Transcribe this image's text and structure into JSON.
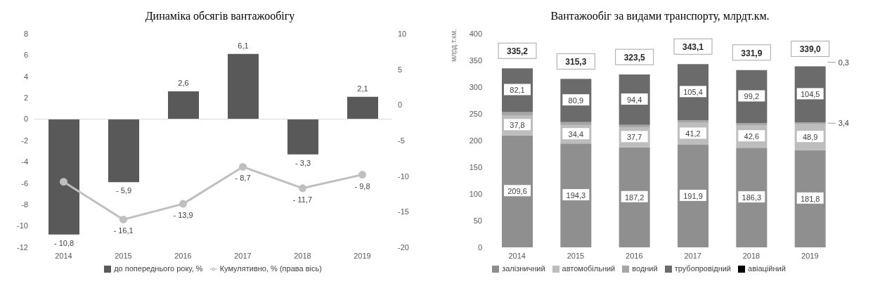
{
  "chart_data": [
    {
      "type": "bar",
      "title": "Динаміка обсягів вантажообігу",
      "categories": [
        "2014",
        "2015",
        "2016",
        "2017",
        "2018",
        "2019"
      ],
      "series": [
        {
          "name": "до попереднього року, %",
          "type": "bar",
          "color": "#595959",
          "values": [
            -10.8,
            -5.9,
            2.6,
            6.1,
            -3.3,
            2.1
          ],
          "value_labels": [
            "- 10,8",
            "- 5,9",
            "2,6",
            "6,1",
            "- 3,3",
            "2,1"
          ]
        },
        {
          "name": "Кумулятивно, % (права вісь)",
          "type": "line",
          "axis": "y2",
          "color": "#bfbfbf",
          "values": [
            -10.8,
            -16.1,
            -13.9,
            -8.7,
            -11.7,
            -9.8
          ],
          "value_labels": [
            null,
            "- 16,1",
            "- 13,9",
            "- 8,7",
            "- 11,7",
            "- 9,8"
          ]
        }
      ],
      "ylim": [
        -12,
        8
      ],
      "yticks": [
        -12,
        -10,
        -8,
        -6,
        -4,
        -2,
        0,
        2,
        4,
        6,
        8
      ],
      "y2lim": [
        -20,
        10
      ],
      "y2ticks": [
        -20,
        -15,
        -10,
        -5,
        0,
        5,
        10
      ],
      "marker": "circle",
      "grid": false,
      "legend": "bottom",
      "ref_lines": [
        {
          "axis": "y",
          "value": 0,
          "color": "#d9d9d9"
        }
      ]
    },
    {
      "type": "bar",
      "title": "Вантажообіг за видами транспорту, млрдт.км.",
      "ylabel": "млрд.т.км.",
      "categories": [
        "2014",
        "2015",
        "2016",
        "2017",
        "2018",
        "2019"
      ],
      "stacked": true,
      "series": [
        {
          "name": "залізничний",
          "color": "#8f8f8f",
          "values": [
            209.6,
            194.3,
            187.2,
            191.9,
            186.3,
            181.8
          ],
          "value_labels": [
            "209,6",
            "194,3",
            "187,2",
            "191,9",
            "186,3",
            "181,8"
          ]
        },
        {
          "name": "автомобільний",
          "color": "#bdbdbd",
          "values": [
            37.8,
            34.4,
            37.7,
            41.2,
            42.6,
            48.9
          ],
          "value_labels": [
            "37,8",
            "34,4",
            "37,7",
            "41,2",
            "42,6",
            "48,9"
          ]
        },
        {
          "name": "водний",
          "color": "#a6a6a6",
          "values": [
            5.7,
            5.7,
            4.2,
            4.6,
            3.8,
            3.4
          ],
          "value_labels": [
            null,
            null,
            null,
            null,
            null,
            "3,4"
          ]
        },
        {
          "name": "трубопровідний",
          "color": "#6b6b6b",
          "values": [
            82.1,
            80.9,
            94.4,
            105.4,
            99.2,
            104.5
          ],
          "value_labels": [
            "82,1",
            "80,9",
            "94,4",
            "105,4",
            "99,2",
            "104,5"
          ]
        },
        {
          "name": "авіаційний",
          "color": "#000000",
          "values": [
            null,
            null,
            null,
            null,
            null,
            0.3
          ],
          "value_labels": [
            null,
            null,
            null,
            null,
            null,
            "0,3"
          ]
        }
      ],
      "totals": [
        "335,2",
        "315,3",
        "323,5",
        "343,1",
        "331,9",
        "339,0"
      ],
      "ylim": [
        0,
        400
      ],
      "yticks": [
        0,
        50,
        100,
        150,
        200,
        250,
        300,
        350,
        400
      ],
      "grid": false,
      "legend": "bottom"
    }
  ]
}
